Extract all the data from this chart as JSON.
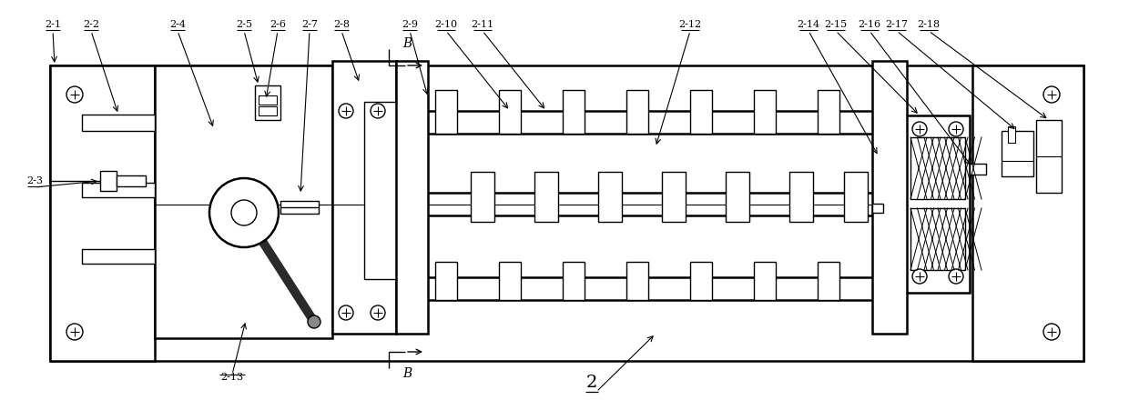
{
  "fig_width": 12.4,
  "fig_height": 4.62,
  "dpi": 100,
  "bg_color": "#ffffff",
  "lw": 1.0,
  "lw2": 1.8
}
